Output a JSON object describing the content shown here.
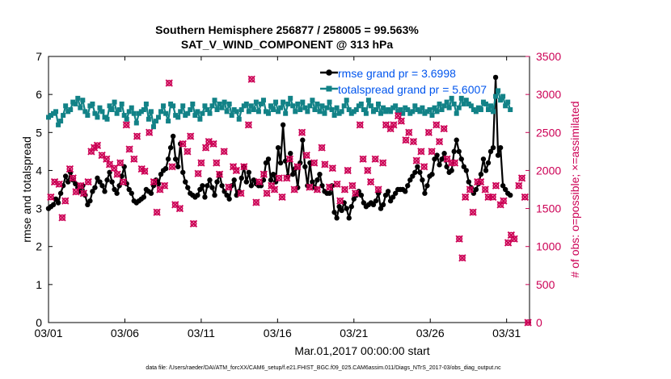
{
  "chart_data": {
    "type": "line",
    "title": "Southern Hemisphere 256877 / 258005 = 99.563%",
    "subtitle": "SAT_V_WIND_COMPONENT @ 313 hPa",
    "xlabel": "Mar.01,2017 00:00:00 start",
    "ylabel": "rmse and totalspread",
    "y2label": "# of obs: o=possible; ×=assimilated",
    "footnote": "data file: /Users/raeder/DAI/ATM_forcXX/CAM6_setup/f.e21.FHIST_BGC.f09_025.CAM6assim.011/Diags_NTrS_2017-03/obs_diag_output.nc",
    "xlim": [
      0,
      31.5
    ],
    "ylim": [
      0,
      7
    ],
    "y2lim": [
      0,
      3500
    ],
    "xticks": [
      0,
      5,
      10,
      15,
      20,
      25,
      30
    ],
    "xticklabels": [
      "03/01",
      "03/06",
      "03/11",
      "03/16",
      "03/21",
      "03/26",
      "03/31"
    ],
    "yticks": [
      0,
      1,
      2,
      3,
      4,
      5,
      6,
      7
    ],
    "yticklabels": [
      "0",
      "1",
      "2",
      "3",
      "4",
      "5",
      "6",
      "7"
    ],
    "y2ticks": [
      0,
      500,
      1000,
      1500,
      2000,
      2500,
      3000,
      3500
    ],
    "y2ticklabels": [
      "0",
      "500",
      "1000",
      "1500",
      "2000",
      "2500",
      "3000",
      "3500"
    ],
    "legend": {
      "location": "top-right",
      "entries": [
        "rmse grand pr = 3.6998",
        "totalspread grand pr = 5.6007"
      ]
    },
    "series": [
      {
        "name": "rmse",
        "axis": "left",
        "color": "#000000",
        "marker": "filled-circle",
        "values": [
          3.0,
          3.05,
          3.1,
          3.25,
          3.15,
          3.4,
          3.6,
          3.85,
          3.7,
          3.95,
          3.75,
          3.65,
          3.55,
          3.45,
          3.6,
          3.35,
          3.1,
          3.2,
          3.45,
          3.55,
          3.8,
          3.7,
          3.6,
          3.45,
          3.75,
          3.95,
          3.7,
          3.5,
          3.4,
          3.6,
          3.85,
          4.1,
          3.65,
          3.5,
          3.4,
          3.2,
          3.15,
          3.2,
          3.25,
          3.3,
          3.5,
          3.45,
          3.4,
          3.6,
          3.75,
          3.65,
          3.9,
          4.0,
          4.05,
          4.3,
          4.6,
          4.9,
          4.3,
          4.1,
          4.7,
          3.95,
          3.7,
          3.55,
          3.4,
          3.35,
          3.3,
          3.35,
          3.5,
          3.6,
          3.3,
          3.6,
          3.75,
          3.55,
          3.35,
          3.7,
          3.9,
          3.6,
          3.45,
          3.35,
          3.25,
          3.6,
          3.75,
          3.35,
          3.45,
          3.8,
          4.1,
          3.7,
          3.95,
          3.6,
          3.75,
          3.65,
          3.6,
          3.6,
          3.75,
          4.2,
          4.3,
          3.75,
          3.9,
          3.7,
          4.6,
          4.2,
          5.2,
          4.25,
          3.85,
          4.45,
          3.9,
          4.05,
          3.55,
          4.2,
          4.8,
          4.1,
          3.6,
          4.2,
          3.7,
          3.55,
          3.75,
          3.9,
          3.6,
          3.45,
          3.4,
          3.4,
          3.6,
          2.9,
          2.75,
          3.05,
          2.95,
          3.15,
          3.0,
          2.75,
          3.05,
          3.25,
          3.35,
          3.45,
          3.35,
          3.15,
          3.05,
          3.1,
          3.15,
          3.1,
          3.2,
          3.4,
          3.0,
          3.1,
          3.35,
          3.45,
          3.2,
          3.3,
          3.4,
          3.5,
          3.5,
          3.5,
          3.45,
          3.6,
          3.75,
          3.85,
          3.95,
          4.1,
          3.95,
          3.75,
          3.4,
          3.6,
          3.85,
          3.9,
          4.3,
          4.4,
          4.15,
          4.3,
          4.45,
          4.1,
          3.95,
          4.0,
          4.5,
          4.8,
          4.5,
          4.3,
          4.1,
          4.0,
          3.7,
          3.55,
          3.4,
          3.5,
          3.65,
          3.9,
          4.3,
          4.0,
          4.2,
          4.5,
          4.6,
          6.45,
          4.4,
          4.6,
          3.6,
          3.5,
          3.4,
          3.35
        ],
        "x_start": 0,
        "x_step": 0.16
      },
      {
        "name": "totalspread",
        "axis": "left",
        "color": "#128287",
        "marker": "filled-square",
        "values": [
          5.4,
          5.45,
          5.5,
          5.55,
          5.2,
          5.3,
          5.45,
          5.7,
          5.55,
          5.6,
          5.8,
          5.75,
          5.9,
          5.65,
          5.85,
          5.55,
          5.45,
          5.7,
          5.75,
          5.5,
          5.4,
          5.65,
          5.55,
          5.4,
          5.35,
          5.7,
          5.6,
          5.8,
          5.5,
          5.6,
          5.75,
          5.45,
          5.35,
          5.55,
          5.65,
          5.5,
          5.25,
          5.5,
          5.55,
          5.6,
          5.75,
          5.35,
          5.55,
          5.15,
          5.3,
          5.4,
          5.55,
          5.7,
          5.5,
          5.3,
          5.75,
          5.7,
          5.45,
          5.4,
          5.55,
          5.7,
          5.45,
          5.5,
          5.6,
          5.75,
          5.45,
          5.55,
          5.35,
          5.5,
          5.7,
          5.6,
          5.5,
          5.7,
          5.85,
          5.6,
          5.75,
          5.65,
          5.8,
          5.55,
          5.75,
          5.45,
          5.6,
          5.55,
          5.35,
          5.6,
          5.7,
          5.75,
          5.55,
          5.7,
          5.6,
          5.8,
          5.55,
          5.75,
          5.85,
          5.55,
          5.5,
          5.7,
          5.6,
          5.8,
          5.55,
          5.65,
          5.8,
          5.5,
          5.75,
          5.9,
          5.7,
          5.55,
          5.75,
          5.6,
          5.8,
          5.65,
          5.55,
          5.7,
          5.85,
          5.6,
          5.75,
          5.55,
          5.7,
          5.5,
          5.65,
          5.8,
          5.6,
          5.45,
          5.65,
          5.5,
          5.55,
          5.7,
          5.85,
          5.6,
          5.5,
          5.55,
          5.6,
          5.7,
          5.75,
          5.6,
          5.5,
          5.85,
          5.7,
          5.55,
          5.6,
          5.75,
          5.5,
          5.65,
          5.55,
          5.6,
          5.55,
          5.65,
          5.7,
          5.55,
          5.6,
          5.5,
          5.65,
          5.6,
          5.5,
          5.55,
          5.7,
          5.6,
          5.55,
          5.65,
          5.5,
          5.55,
          5.6,
          5.45,
          5.65,
          5.55,
          5.75,
          5.6,
          5.7,
          5.8,
          5.65,
          5.9,
          5.75,
          5.5,
          5.65,
          5.9,
          5.75,
          5.85,
          5.75,
          5.7,
          5.6,
          5.55,
          5.65,
          5.6,
          5.8,
          5.75,
          5.6,
          5.7,
          5.55,
          5.95,
          6.1,
          5.85,
          5.95,
          5.7,
          5.8,
          5.6
        ],
        "x_start": 0,
        "x_step": 0.16
      },
      {
        "name": "obs possible",
        "axis": "right",
        "color": "#cc0055",
        "marker": "circle",
        "values": []
      },
      {
        "name": "obs assimilated",
        "axis": "right",
        "color": "#cc0055",
        "marker": "x",
        "points": [
          [
            0.15,
            1650
          ],
          [
            0.4,
            1850
          ],
          [
            0.7,
            1820
          ],
          [
            0.9,
            1380
          ],
          [
            1.1,
            1600
          ],
          [
            1.4,
            2020
          ],
          [
            1.6,
            1900
          ],
          [
            1.8,
            1720
          ],
          [
            2.1,
            1800
          ],
          [
            2.3,
            1700
          ],
          [
            2.6,
            1850
          ],
          [
            2.8,
            2250
          ],
          [
            3.0,
            2300
          ],
          [
            3.2,
            2330
          ],
          [
            3.5,
            2200
          ],
          [
            3.8,
            2150
          ],
          [
            4.0,
            2080
          ],
          [
            4.3,
            2030
          ],
          [
            4.5,
            1950
          ],
          [
            4.7,
            2100
          ],
          [
            4.9,
            1850
          ],
          [
            5.1,
            2600
          ],
          [
            5.3,
            2280
          ],
          [
            5.6,
            2150
          ],
          [
            5.8,
            2450
          ],
          [
            6.1,
            2020
          ],
          [
            6.3,
            1990
          ],
          [
            6.6,
            2500
          ],
          [
            6.9,
            1850
          ],
          [
            7.1,
            1450
          ],
          [
            7.3,
            1750
          ],
          [
            7.6,
            1800
          ],
          [
            7.9,
            3150
          ],
          [
            8.1,
            2050
          ],
          [
            8.3,
            1550
          ],
          [
            8.6,
            1500
          ],
          [
            8.8,
            2350
          ],
          [
            9.1,
            2250
          ],
          [
            9.3,
            2450
          ],
          [
            9.5,
            1300
          ],
          [
            9.8,
            1960
          ],
          [
            10.0,
            2100
          ],
          [
            10.3,
            2300
          ],
          [
            10.5,
            2380
          ],
          [
            10.8,
            2350
          ],
          [
            11.0,
            2100
          ],
          [
            11.2,
            1950
          ],
          [
            11.5,
            2250
          ],
          [
            11.8,
            1780
          ],
          [
            12.1,
            2050
          ],
          [
            12.3,
            2000
          ],
          [
            12.6,
            1700
          ],
          [
            12.8,
            2050
          ],
          [
            13.1,
            2600
          ],
          [
            13.3,
            3200
          ],
          [
            13.6,
            1580
          ],
          [
            13.8,
            1850
          ],
          [
            14.1,
            1950
          ],
          [
            14.3,
            1700
          ],
          [
            14.6,
            1800
          ],
          [
            14.8,
            1750
          ],
          [
            15.1,
            1900
          ],
          [
            15.3,
            1650
          ],
          [
            15.6,
            1900
          ],
          [
            15.8,
            2150
          ],
          [
            16.1,
            1750
          ],
          [
            16.3,
            2050
          ],
          [
            16.6,
            2500
          ],
          [
            16.9,
            2200
          ],
          [
            17.1,
            1780
          ],
          [
            17.4,
            2100
          ],
          [
            17.6,
            1750
          ],
          [
            17.9,
            2300
          ],
          [
            18.1,
            2080
          ],
          [
            18.4,
            1780
          ],
          [
            18.6,
            2030
          ],
          [
            18.9,
            1820
          ],
          [
            19.1,
            1600
          ],
          [
            19.4,
            1750
          ],
          [
            19.6,
            2000
          ],
          [
            19.9,
            1800
          ],
          [
            20.1,
            1700
          ],
          [
            20.4,
            2600
          ],
          [
            20.6,
            2150
          ],
          [
            20.9,
            2000
          ],
          [
            21.1,
            1850
          ],
          [
            21.4,
            2150
          ],
          [
            21.6,
            1750
          ],
          [
            21.9,
            2100
          ],
          [
            22.1,
            2600
          ],
          [
            22.4,
            2550
          ],
          [
            22.6,
            2600
          ],
          [
            22.9,
            2720
          ],
          [
            23.1,
            2650
          ],
          [
            23.4,
            2400
          ],
          [
            23.6,
            2500
          ],
          [
            23.9,
            2380
          ],
          [
            24.1,
            2130
          ],
          [
            24.4,
            2250
          ],
          [
            24.6,
            2050
          ],
          [
            24.9,
            2500
          ],
          [
            25.1,
            2250
          ],
          [
            25.4,
            2600
          ],
          [
            25.6,
            2380
          ],
          [
            25.9,
            2550
          ],
          [
            26.1,
            2150
          ],
          [
            26.4,
            2100
          ],
          [
            26.6,
            2100
          ],
          [
            26.9,
            1100
          ],
          [
            27.1,
            850
          ],
          [
            27.3,
            1650
          ],
          [
            27.6,
            1750
          ],
          [
            27.8,
            1450
          ],
          [
            28.1,
            1850
          ],
          [
            28.3,
            1850
          ],
          [
            28.6,
            1750
          ],
          [
            28.8,
            1650
          ],
          [
            29.1,
            1650
          ],
          [
            29.3,
            1800
          ],
          [
            29.6,
            1550
          ],
          [
            29.8,
            1600
          ],
          [
            30.1,
            1050
          ],
          [
            30.3,
            1150
          ],
          [
            30.5,
            1100
          ],
          [
            30.8,
            1800
          ],
          [
            31.0,
            1900
          ],
          [
            31.2,
            1650
          ],
          [
            31.4,
            0
          ]
        ]
      }
    ]
  }
}
